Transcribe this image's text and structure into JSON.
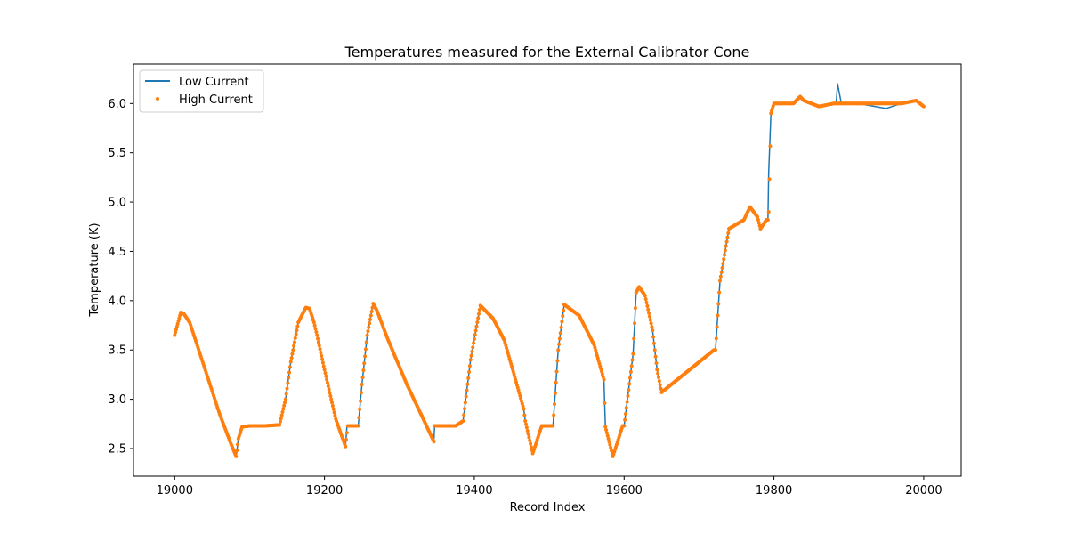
{
  "chart_data": {
    "type": "line",
    "title": "Temperatures measured for the External Calibrator Cone",
    "xlabel": "Record Index",
    "ylabel": "Temperature (K)",
    "xlim": [
      18945,
      20050
    ],
    "ylim": [
      2.22,
      6.4
    ],
    "xticks": [
      19000,
      19200,
      19400,
      19600,
      19800,
      20000
    ],
    "yticks": [
      2.5,
      3.0,
      3.5,
      4.0,
      4.5,
      5.0,
      5.5,
      6.0
    ],
    "xtick_labels": [
      "19000",
      "19200",
      "19400",
      "19600",
      "19800",
      "20000"
    ],
    "ytick_labels": [
      "2.5",
      "3.0",
      "3.5",
      "4.0",
      "4.5",
      "5.0",
      "5.5",
      "6.0"
    ],
    "legend_position": "top-left",
    "colors": {
      "low": "#1f77b4",
      "high": "#ff7f0e"
    },
    "series": [
      {
        "name": "Low Current",
        "style": "line",
        "x": [
          19000,
          19008,
          19012,
          19020,
          19030,
          19045,
          19060,
          19075,
          19082,
          19085,
          19090,
          19100,
          19120,
          19140,
          19148,
          19155,
          19165,
          19175,
          19180,
          19186,
          19190,
          19200,
          19215,
          19228,
          19230,
          19231,
          19245,
          19250,
          19257,
          19265,
          19270,
          19285,
          19310,
          19330,
          19346,
          19347,
          19375,
          19385,
          19395,
          19408,
          19412,
          19425,
          19440,
          19455,
          19466,
          19468,
          19478,
          19490,
          19505,
          19512,
          19520,
          19540,
          19560,
          19573,
          19575,
          19585,
          19598,
          19600,
          19612,
          19616,
          19620,
          19628,
          19638,
          19644,
          19650,
          19720,
          19722,
          19728,
          19740,
          19760,
          19768,
          19778,
          19782,
          19790,
          19792,
          19793,
          19796,
          19800,
          19820,
          19826,
          19835,
          19840,
          19860,
          19880,
          19883,
          19885,
          19890,
          19910,
          19912,
          19950,
          19970,
          19990,
          19995,
          20000
        ],
        "y": [
          3.65,
          3.88,
          3.87,
          3.78,
          3.55,
          3.2,
          2.85,
          2.55,
          2.42,
          2.6,
          2.72,
          2.73,
          2.73,
          2.74,
          3.0,
          3.38,
          3.78,
          3.93,
          3.92,
          3.78,
          3.65,
          3.3,
          2.8,
          2.52,
          2.73,
          2.73,
          2.73,
          3.15,
          3.65,
          3.97,
          3.9,
          3.6,
          3.15,
          2.83,
          2.57,
          2.73,
          2.73,
          2.78,
          3.4,
          3.95,
          3.92,
          3.82,
          3.6,
          3.2,
          2.9,
          2.78,
          2.45,
          2.73,
          2.73,
          3.5,
          3.96,
          3.85,
          3.55,
          3.2,
          2.72,
          2.42,
          2.73,
          2.73,
          3.46,
          4.08,
          4.14,
          4.05,
          3.7,
          3.3,
          3.07,
          3.5,
          3.5,
          4.2,
          4.73,
          4.82,
          4.95,
          4.85,
          4.73,
          4.82,
          4.82,
          5.3,
          5.9,
          6.0,
          6.0,
          6.0,
          6.07,
          6.03,
          5.97,
          6.0,
          6.0,
          6.2,
          6.0,
          6.0,
          6.0,
          5.95,
          6.0,
          6.03,
          6.0,
          5.97
        ]
      },
      {
        "name": "High Current",
        "style": "scatter",
        "x": [
          19000,
          19008,
          19012,
          19020,
          19030,
          19045,
          19060,
          19075,
          19082,
          19085,
          19090,
          19100,
          19120,
          19140,
          19148,
          19155,
          19165,
          19175,
          19180,
          19186,
          19190,
          19200,
          19215,
          19228,
          19231,
          19245,
          19250,
          19257,
          19265,
          19270,
          19285,
          19310,
          19330,
          19346,
          19347,
          19375,
          19385,
          19395,
          19408,
          19412,
          19425,
          19440,
          19455,
          19466,
          19468,
          19478,
          19490,
          19505,
          19512,
          19520,
          19540,
          19560,
          19573,
          19575,
          19585,
          19598,
          19600,
          19612,
          19616,
          19620,
          19628,
          19638,
          19644,
          19650,
          19720,
          19722,
          19728,
          19740,
          19760,
          19768,
          19778,
          19782,
          19790,
          19792,
          19793,
          19796,
          19800,
          19820,
          19826,
          19835,
          19840,
          19860,
          19880,
          19910,
          19950,
          19970,
          19990,
          19995,
          20000
        ],
        "y": [
          3.65,
          3.88,
          3.87,
          3.78,
          3.55,
          3.2,
          2.85,
          2.55,
          2.42,
          2.6,
          2.72,
          2.73,
          2.73,
          2.74,
          3.0,
          3.38,
          3.78,
          3.93,
          3.92,
          3.78,
          3.65,
          3.3,
          2.8,
          2.52,
          2.73,
          2.73,
          3.15,
          3.65,
          3.97,
          3.9,
          3.6,
          3.15,
          2.83,
          2.57,
          2.73,
          2.73,
          2.78,
          3.4,
          3.95,
          3.92,
          3.82,
          3.6,
          3.2,
          2.9,
          2.78,
          2.45,
          2.73,
          2.73,
          3.5,
          3.96,
          3.85,
          3.55,
          3.2,
          2.72,
          2.42,
          2.73,
          2.73,
          3.46,
          4.08,
          4.14,
          4.05,
          3.7,
          3.3,
          3.07,
          3.5,
          3.5,
          4.2,
          4.73,
          4.82,
          4.95,
          4.85,
          4.73,
          4.82,
          4.82,
          4.9,
          5.9,
          6.0,
          6.0,
          6.0,
          6.07,
          6.03,
          5.97,
          6.0,
          6.0,
          6.0,
          6.0,
          6.03,
          6.0,
          5.97
        ]
      }
    ]
  }
}
